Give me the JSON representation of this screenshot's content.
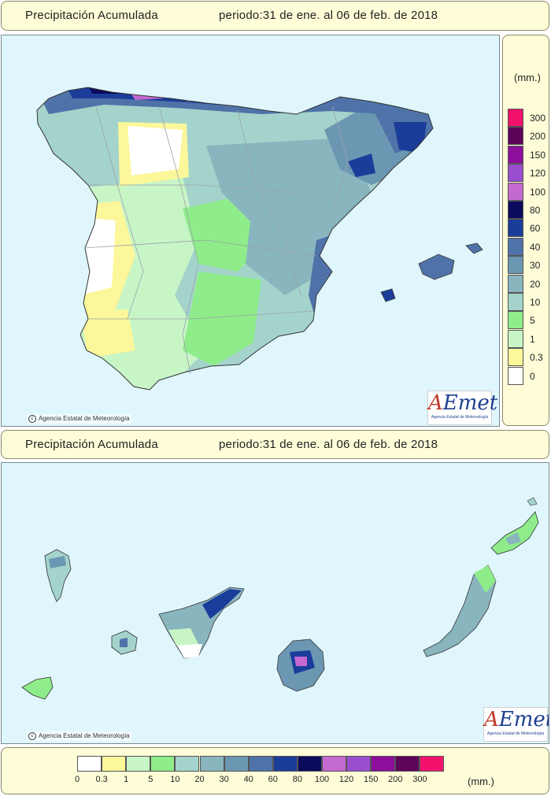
{
  "header_top": {
    "title": "Precipitación Acumulada",
    "period": "periodo:31 de ene. al 06 de feb. de 2018"
  },
  "header_bottom": {
    "title": "Precipitación Acumulada",
    "period": "periodo:31 de ene. al 06 de feb. de 2018"
  },
  "credit": "Agencia Estatal de Meteorología",
  "logo": {
    "text": "AEmet",
    "subtitle": "Agencia Estatal de Meteorología"
  },
  "legend": {
    "unit": "(mm.)",
    "classes": [
      {
        "label": "0",
        "color": "#ffffff"
      },
      {
        "label": "0.3",
        "color": "#fbf79a"
      },
      {
        "label": "1",
        "color": "#c8f5c6"
      },
      {
        "label": "5",
        "color": "#8eed8a"
      },
      {
        "label": "10",
        "color": "#a4d3cc"
      },
      {
        "label": "20",
        "color": "#89b5be"
      },
      {
        "label": "30",
        "color": "#6c97b2"
      },
      {
        "label": "40",
        "color": "#4f73a8"
      },
      {
        "label": "60",
        "color": "#1b3d9a"
      },
      {
        "label": "80",
        "color": "#0b0a5c"
      },
      {
        "label": "100",
        "color": "#c469d0"
      },
      {
        "label": "120",
        "color": "#9a4ecf"
      },
      {
        "label": "150",
        "color": "#8e0e9c"
      },
      {
        "label": "200",
        "color": "#5d0459"
      },
      {
        "label": "300",
        "color": "#f3126b"
      }
    ]
  }
}
